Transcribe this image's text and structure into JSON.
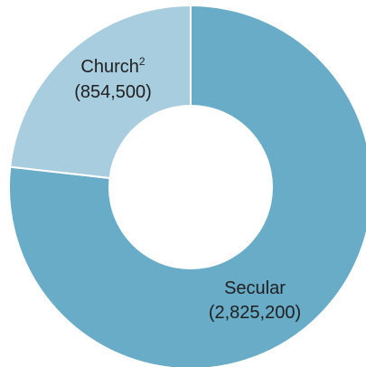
{
  "chart_data": {
    "type": "pie",
    "variant": "donut",
    "slices": [
      {
        "name": "Secular",
        "label": "Secular",
        "value_text": "(2,825,200)",
        "value": 2825200,
        "color": "#68acc7"
      },
      {
        "name": "Church",
        "label": "Church",
        "superscript": "2",
        "value_text": "(854,500)",
        "value": 854500,
        "color": "#a7cddf"
      }
    ],
    "start": "12 o'clock",
    "direction": "clockwise",
    "separator_color": "#ffffff",
    "hole_color": "#ffffff"
  }
}
